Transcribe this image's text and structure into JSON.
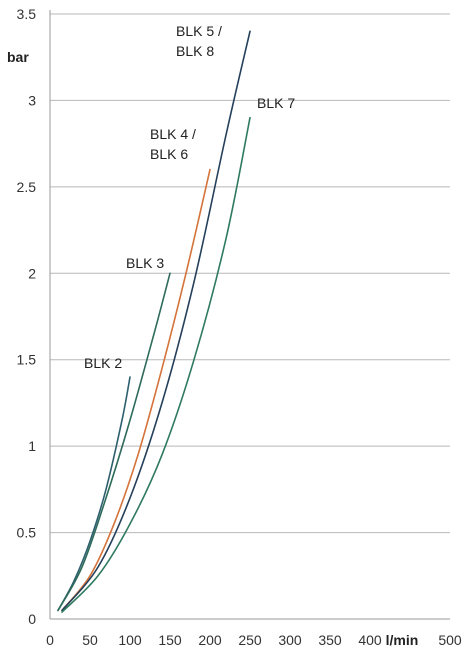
{
  "chart_data": {
    "type": "line",
    "title": "",
    "xlabel": "l/min",
    "ylabel": "bar",
    "xlim": [
      0,
      500
    ],
    "ylim": [
      0,
      3.5
    ],
    "x_ticks": [
      0,
      50,
      100,
      150,
      200,
      250,
      300,
      350,
      400,
      500
    ],
    "y_ticks": [
      0,
      0.5,
      1,
      1.5,
      2,
      2.5,
      3,
      3.5
    ],
    "grid": "horizontal",
    "legend": "none",
    "series": [
      {
        "name": "BLK 2",
        "label_lines": [
          "BLK 2"
        ],
        "color": "#2d5f6e",
        "x": [
          10,
          30,
          50,
          70,
          90,
          100
        ],
        "y": [
          0.05,
          0.22,
          0.45,
          0.75,
          1.15,
          1.4
        ]
      },
      {
        "name": "BLK 3",
        "label_lines": [
          "BLK 3"
        ],
        "color": "#2e6b5a",
        "x": [
          10,
          40,
          70,
          100,
          130,
          150
        ],
        "y": [
          0.05,
          0.3,
          0.7,
          1.15,
          1.65,
          2.0
        ]
      },
      {
        "name": "BLK 4 / BLK 6",
        "label_lines": [
          "BLK 4 /",
          "BLK 6"
        ],
        "color": "#d4733a",
        "x": [
          15,
          50,
          80,
          110,
          140,
          170,
          200
        ],
        "y": [
          0.05,
          0.25,
          0.55,
          0.95,
          1.45,
          2.0,
          2.6
        ]
      },
      {
        "name": "BLK 5 / BLK 8",
        "label_lines": [
          "BLK 5 /",
          "BLK 8"
        ],
        "color": "#25405a",
        "x": [
          15,
          60,
          100,
          140,
          180,
          220,
          250
        ],
        "y": [
          0.05,
          0.3,
          0.7,
          1.25,
          1.95,
          2.8,
          3.4
        ]
      },
      {
        "name": "BLK 7",
        "label_lines": [
          "BLK 7"
        ],
        "color": "#2f7a60",
        "x": [
          15,
          60,
          100,
          140,
          180,
          220,
          250
        ],
        "y": [
          0.04,
          0.25,
          0.55,
          0.95,
          1.5,
          2.2,
          2.9
        ]
      }
    ]
  }
}
